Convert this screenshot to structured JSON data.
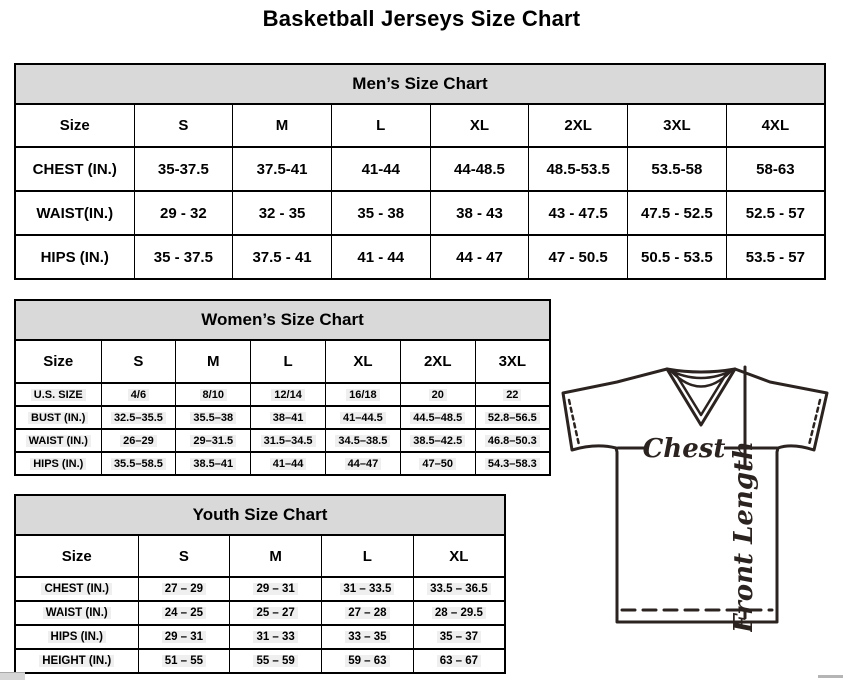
{
  "page": {
    "title": "Basketball Jerseys Size Chart"
  },
  "tables": {
    "mens": {
      "title": "Men’s Size Chart",
      "columns": [
        "Size",
        "S",
        "M",
        "L",
        "XL",
        "2XL",
        "3XL",
        "4XL"
      ],
      "rows": [
        {
          "label": "CHEST (IN.)",
          "values": [
            "35-37.5",
            "37.5-41",
            "41-44",
            "44-48.5",
            "48.5-53.5",
            "53.5-58",
            "58-63"
          ]
        },
        {
          "label": "WAIST(IN.)",
          "values": [
            "29 - 32",
            "32 - 35",
            "35 - 38",
            "38 - 43",
            "43 - 47.5",
            "47.5 - 52.5",
            "52.5 - 57"
          ]
        },
        {
          "label": "HIPS (IN.)",
          "values": [
            "35 - 37.5",
            "37.5 - 41",
            "41 - 44",
            "44 - 47",
            "47 - 50.5",
            "50.5 - 53.5",
            "53.5 - 57"
          ]
        }
      ]
    },
    "womens": {
      "title": "Women’s Size Chart",
      "columns": [
        "Size",
        "S",
        "M",
        "L",
        "XL",
        "2XL",
        "3XL"
      ],
      "rows": [
        {
          "label": "U.S. SIZE",
          "values": [
            "4/6",
            "8/10",
            "12/14",
            "16/18",
            "20",
            "22"
          ]
        },
        {
          "label": "BUST (IN.)",
          "values": [
            "32.5–35.5",
            "35.5–38",
            "38–41",
            "41–44.5",
            "44.5–48.5",
            "52.8–56.5"
          ]
        },
        {
          "label": "WAIST (IN.)",
          "values": [
            "26–29",
            "29–31.5",
            "31.5–34.5",
            "34.5–38.5",
            "38.5–42.5",
            "46.8–50.3"
          ]
        },
        {
          "label": "HIPS (IN.)",
          "values": [
            "35.5–58.5",
            "38.5–41",
            "41–44",
            "44–47",
            "47–50",
            "54.3–58.3"
          ]
        }
      ]
    },
    "youth": {
      "title": "Youth Size Chart",
      "columns": [
        "Size",
        "S",
        "M",
        "L",
        "XL"
      ],
      "rows": [
        {
          "label": "CHEST (IN.)",
          "values": [
            "27 – 29",
            "29 – 31",
            "31 – 33.5",
            "33.5 – 36.5"
          ]
        },
        {
          "label": "WAIST (IN.)",
          "values": [
            "24 – 25",
            "25 – 27",
            "27 – 28",
            "28 – 29.5"
          ]
        },
        {
          "label": "HIPS (IN.)",
          "values": [
            "29 – 31",
            "31 – 33",
            "33 – 35",
            "35 – 37"
          ]
        },
        {
          "label": "HEIGHT (IN.)",
          "values": [
            "51 – 55",
            "55 – 59",
            "59 – 63",
            "63 – 67"
          ]
        }
      ]
    }
  },
  "diagram": {
    "chest_label": "Chest",
    "front_length_label": "Front Length"
  },
  "colors": {
    "table_header_bg": "#d9d9d9",
    "border": "#000000",
    "cell_highlight": "#efefef",
    "diagram_stroke": "#2b2320"
  }
}
